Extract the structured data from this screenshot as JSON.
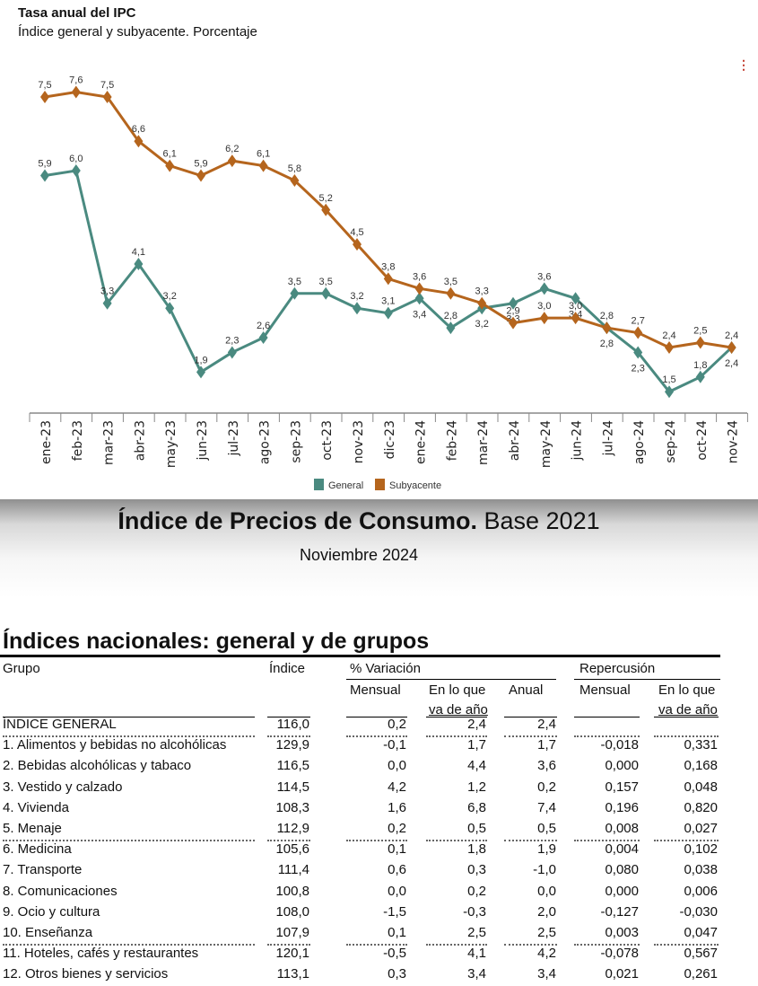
{
  "chart_data": {
    "type": "line",
    "title": "Tasa anual del IPC",
    "subtitle": "Índice general y subyacente. Porcentaje",
    "categories": [
      "ene-23",
      "feb-23",
      "mar-23",
      "abr-23",
      "may-23",
      "jun-23",
      "jul-23",
      "ago-23",
      "sep-23",
      "oct-23",
      "nov-23",
      "dic-23",
      "ene-24",
      "feb-24",
      "mar-24",
      "abr-24",
      "may-24",
      "jun-24",
      "jul-24",
      "ago-24",
      "sep-24",
      "oct-24",
      "nov-24"
    ],
    "series": [
      {
        "name": "General",
        "color": "#4a8a80",
        "values": [
          5.9,
          6.0,
          3.3,
          4.1,
          3.2,
          1.9,
          2.3,
          2.6,
          3.5,
          3.5,
          3.2,
          3.1,
          3.4,
          2.8,
          3.2,
          3.3,
          3.6,
          3.4,
          2.8,
          2.3,
          1.5,
          1.8,
          2.4
        ]
      },
      {
        "name": "Subyacente",
        "color": "#b5651d",
        "values": [
          7.5,
          7.6,
          7.5,
          6.6,
          6.1,
          5.9,
          6.2,
          6.1,
          5.8,
          5.2,
          4.5,
          3.8,
          3.6,
          3.5,
          3.3,
          2.9,
          3.0,
          3.0,
          2.8,
          2.7,
          2.4,
          2.5,
          2.4
        ]
      }
    ],
    "data_labels": true,
    "grid": false,
    "legend": "bottom"
  },
  "menu_icon": "more-vertical-icon",
  "banner": {
    "title_bold": "Índice de Precios de Consumo.",
    "title_rest": " Base 2021",
    "subtitle": "Noviembre 2024"
  },
  "table": {
    "title": "Índices nacionales: general y de grupos",
    "headers": {
      "grupo": "Grupo",
      "indice": "Índice",
      "variacion": "% Variación",
      "repercusion": "Repercusión",
      "mensual": "Mensual",
      "en_lo_que_1": "En lo que",
      "en_lo_que_2": "va de año",
      "anual": "Anual",
      "rep_mensual": "Mensual",
      "rep_en_lo_que_1": "En lo que",
      "rep_en_lo_que_2": "va de año"
    },
    "rows": [
      [
        "ÍNDICE GENERAL",
        "116,0",
        "0,2",
        "2,4",
        "2,4",
        "",
        ""
      ],
      [
        "1. Alimentos y bebidas no alcohólicas",
        "129,9",
        "-0,1",
        "1,7",
        "1,7",
        "-0,018",
        "0,331"
      ],
      [
        "2. Bebidas alcohólicas y tabaco",
        "116,5",
        "0,0",
        "4,4",
        "3,6",
        "0,000",
        "0,168"
      ],
      [
        "3. Vestido y calzado",
        "114,5",
        "4,2",
        "1,2",
        "0,2",
        "0,157",
        "0,048"
      ],
      [
        "4. Vivienda",
        "108,3",
        "1,6",
        "6,8",
        "7,4",
        "0,196",
        "0,820"
      ],
      [
        "5. Menaje",
        "112,9",
        "0,2",
        "0,5",
        "0,5",
        "0,008",
        "0,027"
      ],
      [
        "6. Medicina",
        "105,6",
        "0,1",
        "1,8",
        "1,9",
        "0,004",
        "0,102"
      ],
      [
        "7. Transporte",
        "111,4",
        "0,6",
        "0,3",
        "-1,0",
        "0,080",
        "0,038"
      ],
      [
        "8. Comunicaciones",
        "100,8",
        "0,0",
        "0,2",
        "0,0",
        "0,000",
        "0,006"
      ],
      [
        "9. Ocio y cultura",
        "108,0",
        "-1,5",
        "-0,3",
        "2,0",
        "-0,127",
        "-0,030"
      ],
      [
        "10. Enseñanza",
        "107,9",
        "0,1",
        "2,5",
        "2,5",
        "0,003",
        "0,047"
      ],
      [
        "11. Hoteles, cafés y restaurantes",
        "120,1",
        "-0,5",
        "4,1",
        "4,2",
        "-0,078",
        "0,567"
      ],
      [
        "12. Otros bienes y servicios",
        "113,1",
        "0,3",
        "3,4",
        "3,4",
        "0,021",
        "0,261"
      ]
    ]
  }
}
